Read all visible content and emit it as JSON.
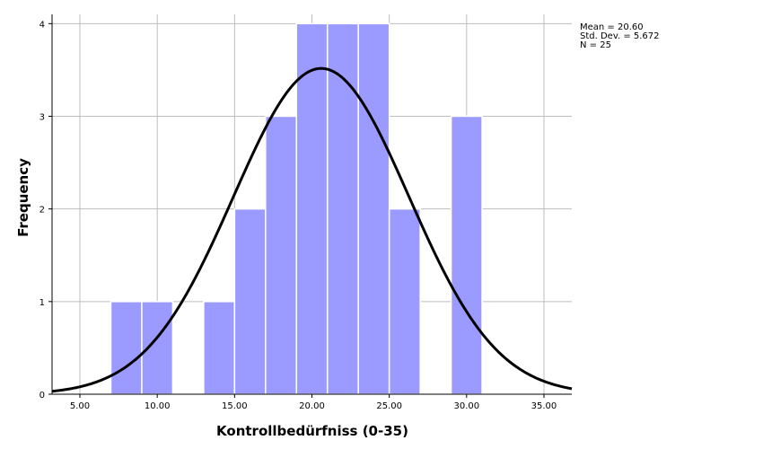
{
  "chart_data": {
    "type": "bar",
    "subtype": "histogram",
    "xlabel": "Kontrollbedürfniss (0-35)",
    "ylabel": "Frequency",
    "xlim": [
      3.2,
      36.8
    ],
    "ylim": [
      0,
      4.1
    ],
    "x_ticks": [
      5,
      10,
      15,
      20,
      25,
      30,
      35
    ],
    "x_tick_labels": [
      "5.00",
      "10.00",
      "15.00",
      "20.00",
      "25.00",
      "30.00",
      "35.00"
    ],
    "y_ticks": [
      0,
      1,
      2,
      3,
      4
    ],
    "y_tick_labels": [
      "0",
      "1",
      "2",
      "3",
      "4"
    ],
    "bin_width": 2,
    "bins": [
      {
        "start": 7,
        "end": 9,
        "count": 1
      },
      {
        "start": 9,
        "end": 11,
        "count": 1
      },
      {
        "start": 13,
        "end": 15,
        "count": 1
      },
      {
        "start": 15,
        "end": 17,
        "count": 2
      },
      {
        "start": 17,
        "end": 19,
        "count": 3
      },
      {
        "start": 19,
        "end": 21,
        "count": 4
      },
      {
        "start": 21,
        "end": 23,
        "count": 4
      },
      {
        "start": 23,
        "end": 25,
        "count": 4
      },
      {
        "start": 25,
        "end": 27,
        "count": 2
      },
      {
        "start": 29,
        "end": 31,
        "count": 3
      }
    ],
    "normal_curve": {
      "mean": 20.6,
      "std_dev": 5.672,
      "n": 25
    },
    "grid": true,
    "colors": {
      "bar_fill": "#9b9bff",
      "bar_stroke": "#ffffff",
      "curve": "#000000",
      "grid": "#bdbdbd",
      "axis": "#000000"
    }
  },
  "stats": {
    "mean_line": "Mean = 20.60",
    "sd_line": "Std. Dev. = 5.672",
    "n_line": "N = 25"
  }
}
